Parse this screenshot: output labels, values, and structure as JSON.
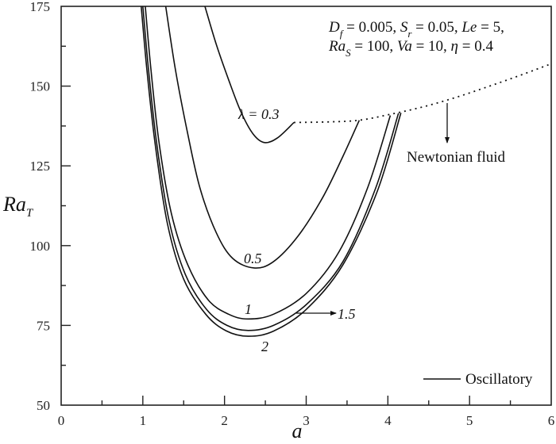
{
  "chart_data": {
    "type": "line",
    "title": "",
    "xlabel": "a",
    "ylabel": "Ra_T",
    "xlim": [
      0,
      6
    ],
    "ylim": [
      50,
      175
    ],
    "x_ticks": [
      "0",
      "1",
      "2",
      "3",
      "4",
      "5",
      "6"
    ],
    "y_ticks": [
      "50",
      "75",
      "100",
      "125",
      "150",
      "175"
    ],
    "grid": false,
    "parameters_text": {
      "line1": [
        "D_f = 0.005,",
        "S_r = 0.05,",
        "Le = 5,"
      ],
      "line2": [
        "Ra_S = 100,",
        "Va = 10,",
        "η = 0.4"
      ]
    },
    "legend": [
      {
        "label": "Oscillatory",
        "style": "solid"
      }
    ],
    "annotations": [
      "Newtonian fluid"
    ],
    "series": [
      {
        "name": "λ = 0.3",
        "label": "λ = 0.3",
        "style": "solid",
        "points": [
          [
            1.76,
            175
          ],
          [
            1.9,
            163
          ],
          [
            2.05,
            152
          ],
          [
            2.2,
            142
          ],
          [
            2.35,
            135
          ],
          [
            2.49,
            132.3
          ],
          [
            2.65,
            133.8
          ],
          [
            2.85,
            138.6
          ]
        ]
      },
      {
        "name": "λ = 0.5",
        "label": "0.5",
        "style": "solid",
        "points": [
          [
            1.28,
            175
          ],
          [
            1.4,
            155
          ],
          [
            1.55,
            135
          ],
          [
            1.7,
            118
          ],
          [
            1.9,
            104
          ],
          [
            2.1,
            96
          ],
          [
            2.36,
            93
          ],
          [
            2.6,
            95
          ],
          [
            2.9,
            103
          ],
          [
            3.2,
            115
          ],
          [
            3.45,
            128
          ],
          [
            3.65,
            139.3
          ]
        ]
      },
      {
        "name": "λ = 1",
        "label": "1",
        "style": "solid",
        "points": [
          [
            1.03,
            175
          ],
          [
            1.1,
            155
          ],
          [
            1.2,
            132
          ],
          [
            1.35,
            110
          ],
          [
            1.55,
            94
          ],
          [
            1.8,
            83
          ],
          [
            2.05,
            78.5
          ],
          [
            2.29,
            77
          ],
          [
            2.6,
            78.5
          ],
          [
            3.0,
            85
          ],
          [
            3.4,
            98
          ],
          [
            3.75,
            118
          ],
          [
            4.03,
            140.8
          ]
        ]
      },
      {
        "name": "λ = 1.5",
        "label": "1.5",
        "style": "solid",
        "points": [
          [
            1.0,
            175
          ],
          [
            1.07,
            155
          ],
          [
            1.17,
            132
          ],
          [
            1.32,
            108
          ],
          [
            1.52,
            91
          ],
          [
            1.78,
            80
          ],
          [
            2.03,
            75
          ],
          [
            2.29,
            73.4
          ],
          [
            2.6,
            75
          ],
          [
            3.0,
            81.5
          ],
          [
            3.45,
            95
          ],
          [
            3.85,
            118
          ],
          [
            4.13,
            141.5
          ]
        ]
      },
      {
        "name": "λ = 2",
        "label": "2",
        "style": "solid",
        "points": [
          [
            0.98,
            175
          ],
          [
            1.05,
            155
          ],
          [
            1.15,
            132
          ],
          [
            1.3,
            107
          ],
          [
            1.5,
            89.5
          ],
          [
            1.77,
            78.5
          ],
          [
            2.02,
            73.3
          ],
          [
            2.29,
            71.6
          ],
          [
            2.6,
            73.2
          ],
          [
            3.0,
            80
          ],
          [
            3.45,
            94
          ],
          [
            3.87,
            117
          ],
          [
            4.16,
            141.6
          ]
        ]
      },
      {
        "name": "Newtonian fluid",
        "style": "dotted",
        "points": [
          [
            2.85,
            138.6
          ],
          [
            3.3,
            138.8
          ],
          [
            3.65,
            139.3
          ],
          [
            4.0,
            141
          ],
          [
            4.4,
            143.3
          ],
          [
            4.8,
            146.2
          ],
          [
            5.2,
            149.6
          ],
          [
            5.6,
            153.2
          ],
          [
            6.0,
            157
          ]
        ]
      }
    ]
  }
}
